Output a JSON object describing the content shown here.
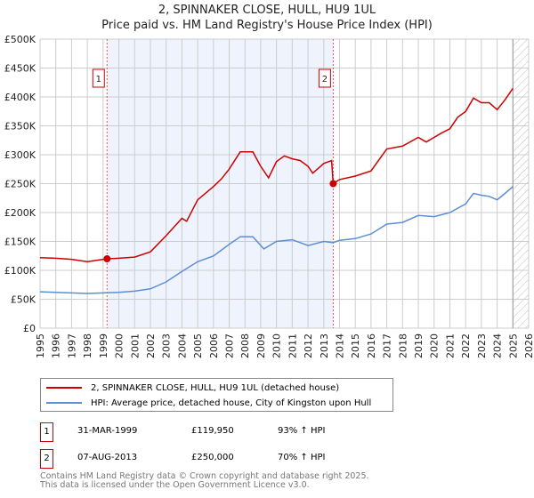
{
  "title_line1": "2, SPINNAKER CLOSE, HULL, HU9 1UL",
  "title_line2": "Price paid vs. HM Land Registry's House Price Index (HPI)",
  "colors": {
    "red": "#cc0000",
    "blue": "#5b8fd4",
    "shade": "#eef3fd"
  },
  "chart_data": {
    "type": "line",
    "xlim": [
      1995,
      2026
    ],
    "ylim": [
      0,
      500000
    ],
    "yticks": [
      {
        "v": 0,
        "label": "£0"
      },
      {
        "v": 50000,
        "label": "£50K"
      },
      {
        "v": 100000,
        "label": "£100K"
      },
      {
        "v": 150000,
        "label": "£150K"
      },
      {
        "v": 200000,
        "label": "£200K"
      },
      {
        "v": 250000,
        "label": "£250K"
      },
      {
        "v": 300000,
        "label": "£300K"
      },
      {
        "v": 350000,
        "label": "£350K"
      },
      {
        "v": 400000,
        "label": "£400K"
      },
      {
        "v": 450000,
        "label": "£450K"
      },
      {
        "v": 500000,
        "label": "£500K"
      }
    ],
    "xticks": [
      "1995",
      "1996",
      "1997",
      "1998",
      "1999",
      "2000",
      "2001",
      "2002",
      "2003",
      "2004",
      "2005",
      "2006",
      "2007",
      "2008",
      "2009",
      "2010",
      "2011",
      "2012",
      "2013",
      "2014",
      "2015",
      "2016",
      "2017",
      "2018",
      "2019",
      "2020",
      "2021",
      "2022",
      "2023",
      "2024",
      "2025",
      "2026"
    ],
    "shaded_range": [
      1999.25,
      2013.6
    ],
    "forecast_hatch_from": 2025.0,
    "series": [
      {
        "name": "2, SPINNAKER CLOSE, HULL, HU9 1UL (detached house)",
        "color": "#cc0000",
        "x": [
          1995,
          1996,
          1997,
          1998,
          1999.25,
          2000,
          2001,
          2002,
          2003,
          2004,
          2004.3,
          2005,
          2006,
          2006.5,
          2007,
          2007.7,
          2008.5,
          2009,
          2009.5,
          2010,
          2010.5,
          2011,
          2011.5,
          2012,
          2012.3,
          2013,
          2013.5,
          2013.6,
          2014,
          2015,
          2016,
          2016.6,
          2017,
          2018,
          2019,
          2019.5,
          2020,
          2020.5,
          2021,
          2021.5,
          2022,
          2022.5,
          2023,
          2023.5,
          2024,
          2024.5,
          2025
        ],
        "y": [
          122000,
          121000,
          119000,
          115000,
          119950,
          121000,
          123000,
          132000,
          160000,
          190000,
          185000,
          222000,
          245000,
          258000,
          275000,
          305000,
          305000,
          280000,
          260000,
          288000,
          298000,
          293000,
          290000,
          280000,
          268000,
          285000,
          290000,
          250000,
          257000,
          263000,
          272000,
          295000,
          310000,
          315000,
          330000,
          322000,
          330000,
          338000,
          345000,
          365000,
          375000,
          398000,
          390000,
          390000,
          378000,
          395000,
          415000
        ]
      },
      {
        "name": "HPI: Average price, detached house, City of Kingston upon Hull",
        "color": "#5b8fd4",
        "x": [
          1995,
          1997,
          1998,
          1999,
          2000,
          2001,
          2002,
          2003,
          2004,
          2005,
          2006,
          2007,
          2007.7,
          2008.5,
          2009.2,
          2010,
          2011,
          2012,
          2013,
          2013.6,
          2014,
          2015,
          2016,
          2017,
          2018,
          2019,
          2020,
          2021,
          2022,
          2022.5,
          2023,
          2023.5,
          2024,
          2024.5,
          2025
        ],
        "y": [
          63000,
          61000,
          60000,
          61000,
          62000,
          64000,
          68000,
          80000,
          98000,
          115000,
          125000,
          145000,
          158000,
          158000,
          137000,
          150000,
          153000,
          143000,
          150000,
          148000,
          152000,
          155000,
          163000,
          180000,
          183000,
          195000,
          193000,
          200000,
          215000,
          233000,
          230000,
          228000,
          222000,
          233000,
          245000
        ]
      }
    ],
    "sales": [
      {
        "id": "1",
        "x": 1999.25,
        "y": 119950,
        "date": "31-MAR-1999",
        "price": "£119,950",
        "hpi": "93% ↑ HPI"
      },
      {
        "id": "2",
        "x": 2013.6,
        "y": 250000,
        "date": "07-AUG-2013",
        "price": "£250,000",
        "hpi": "70% ↑ HPI"
      }
    ]
  },
  "footer_line1": "Contains HM Land Registry data © Crown copyright and database right 2025.",
  "footer_line2": "This data is licensed under the Open Government Licence v3.0."
}
